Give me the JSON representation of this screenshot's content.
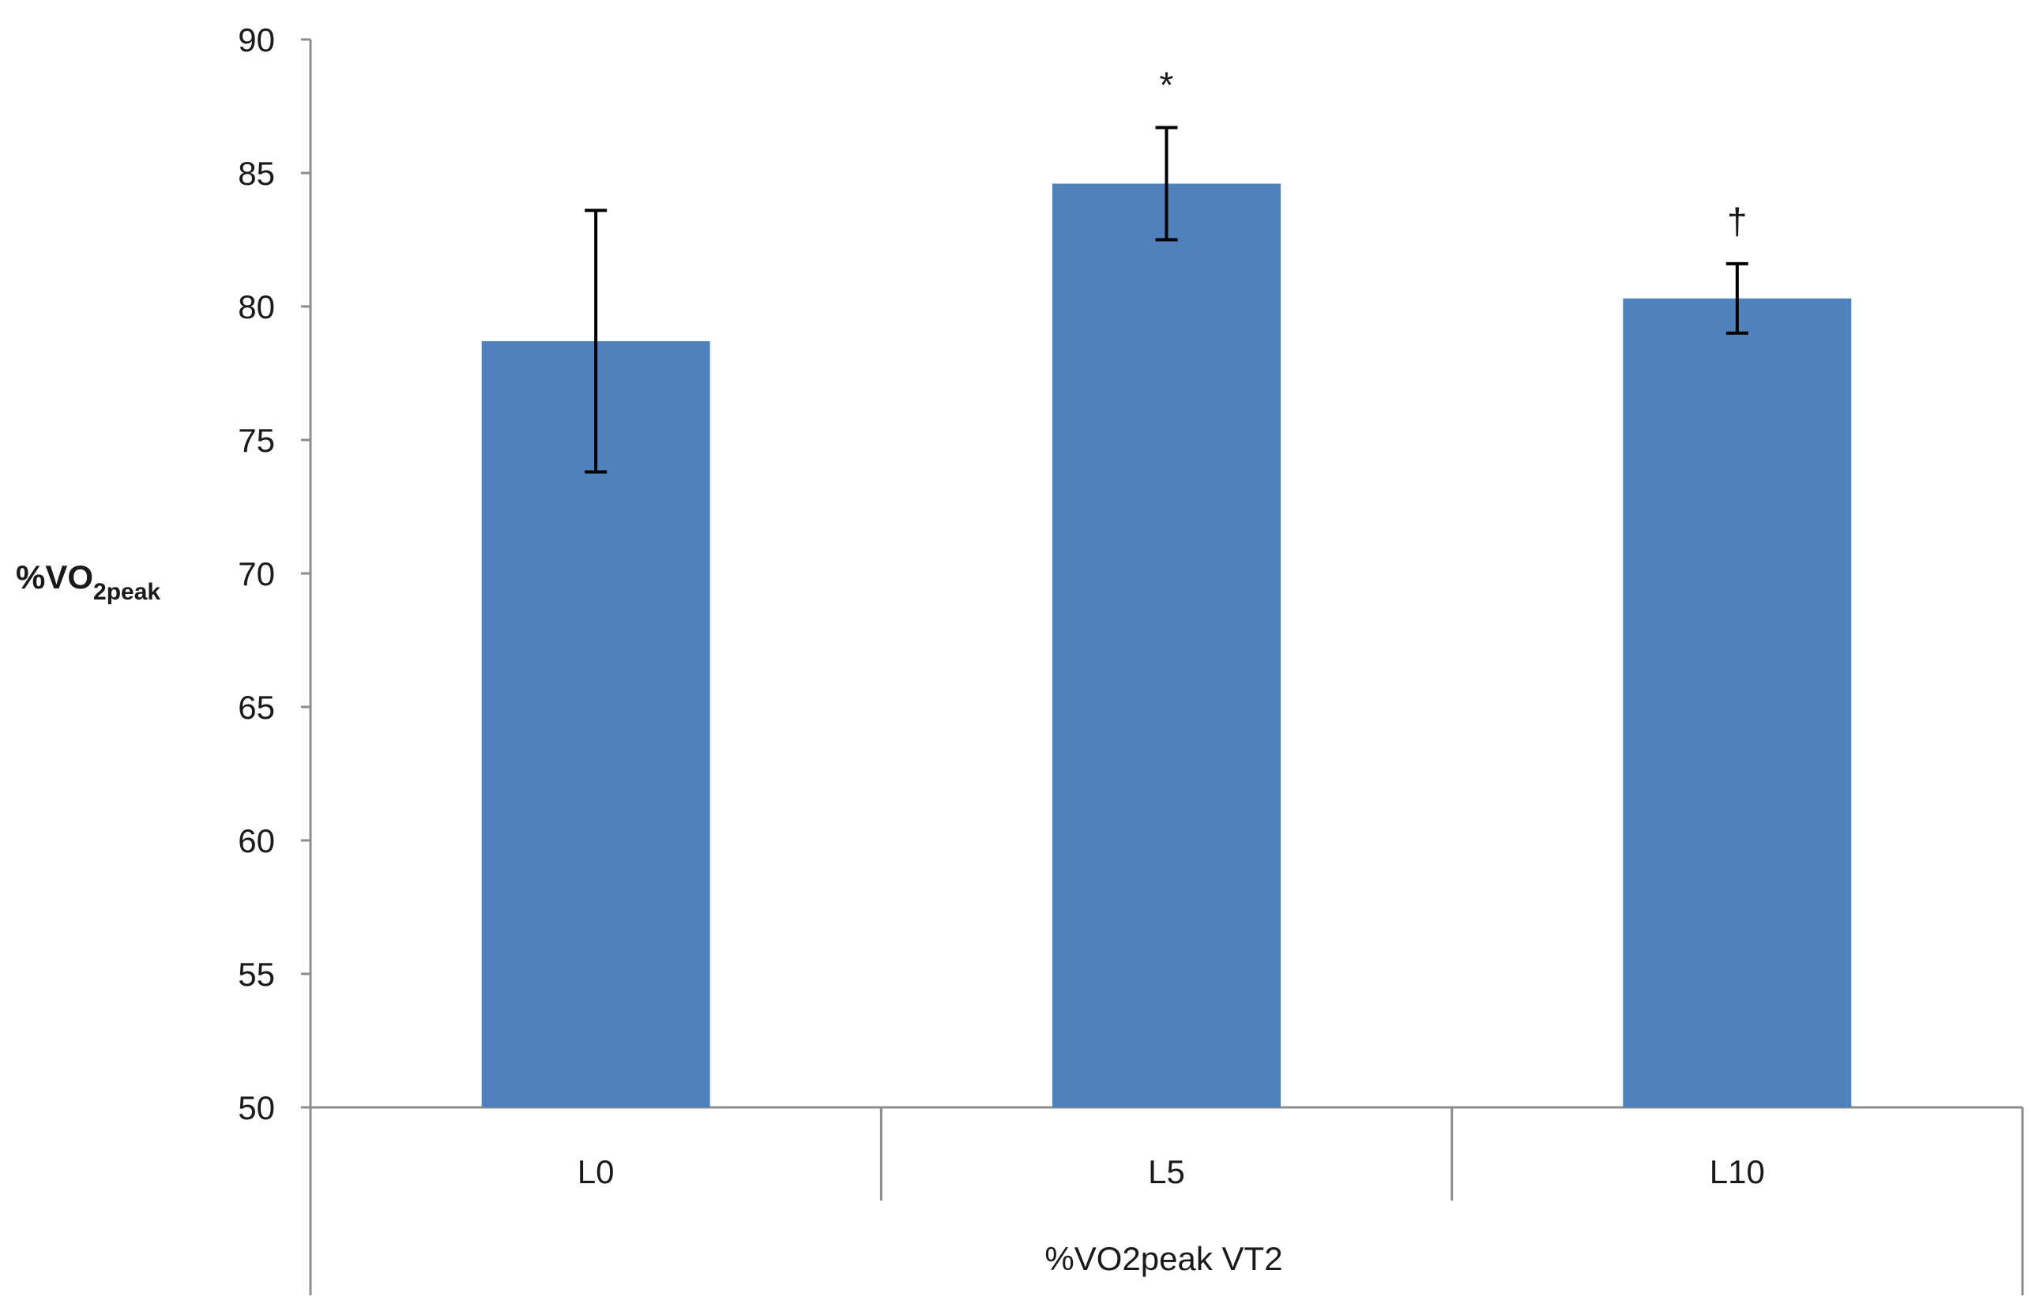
{
  "chart_data": {
    "type": "bar",
    "title": "",
    "ylabel": {
      "main": "%VO",
      "subscript": "2peak"
    },
    "xlabel": "%VO2peak VT2",
    "ylim": [
      50,
      90
    ],
    "yticks": [
      50,
      55,
      60,
      65,
      70,
      75,
      80,
      85,
      90
    ],
    "categories": [
      "L0",
      "L5",
      "L10"
    ],
    "series": [
      {
        "values": [
          78.7,
          84.6,
          80.3
        ],
        "error": [
          4.9,
          2.1,
          1.3
        ],
        "color": "#4f81bd"
      }
    ],
    "annotations": [
      "",
      "*",
      "†"
    ],
    "grid": false,
    "legend": "none"
  }
}
